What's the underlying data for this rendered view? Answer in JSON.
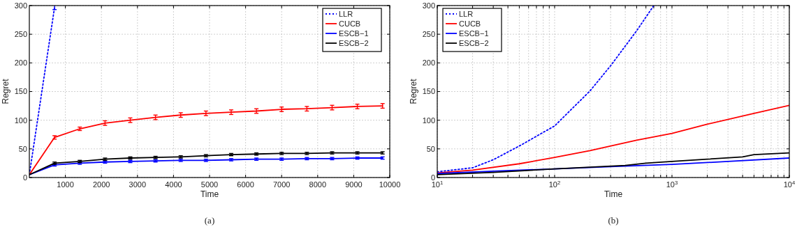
{
  "chart_data": [
    {
      "type": "line",
      "xlabel": "Time",
      "ylabel": "Regret",
      "annotations": [
        "(a)"
      ],
      "xlim": [
        0,
        10000
      ],
      "xticks": [
        1000,
        2000,
        3000,
        4000,
        5000,
        6000,
        7000,
        8000,
        9000,
        10000
      ],
      "ylim": [
        0,
        300
      ],
      "yticks": [
        0,
        50,
        100,
        150,
        200,
        250,
        300
      ],
      "grid": true,
      "legend": "top right",
      "series": [
        {
          "name": "LLR",
          "color": "#0000ff",
          "line_style": "dotted",
          "x": [
            0,
            700
          ],
          "values": [
            5,
            297
          ],
          "errors": [
            null,
            4
          ]
        },
        {
          "name": "CUCB",
          "color": "#ff0000",
          "line_style": "solid",
          "x": [
            0,
            700,
            1400,
            2100,
            2800,
            3500,
            4200,
            4900,
            5600,
            6300,
            7000,
            7700,
            8400,
            9100,
            9800
          ],
          "values": [
            5,
            70,
            85,
            95,
            100,
            105,
            109,
            112,
            114,
            116,
            119,
            120,
            122,
            124,
            125
          ],
          "errors": [
            null,
            3,
            3,
            4,
            4,
            4,
            4,
            4,
            4,
            4,
            4,
            4,
            4,
            4,
            4
          ]
        },
        {
          "name": "ESCB−1",
          "color": "#0000ff",
          "line_style": "solid",
          "x": [
            0,
            700,
            1400,
            2100,
            2800,
            3500,
            4200,
            4900,
            5600,
            6300,
            7000,
            7700,
            8400,
            9100,
            9800
          ],
          "values": [
            5,
            22,
            25,
            27,
            28,
            29,
            30,
            30,
            31,
            32,
            32,
            33,
            33,
            34,
            34
          ],
          "errors": [
            null,
            2,
            2,
            2,
            2,
            2,
            2,
            2,
            2,
            2,
            2,
            2,
            2,
            2,
            2
          ]
        },
        {
          "name": "ESCB−2",
          "color": "#000000",
          "line_style": "solid",
          "x": [
            0,
            700,
            1400,
            2100,
            2800,
            3500,
            4200,
            4900,
            5600,
            6300,
            7000,
            7700,
            8400,
            9100,
            9800
          ],
          "values": [
            5,
            25,
            28,
            32,
            34,
            35,
            36,
            38,
            40,
            41,
            42,
            42,
            43,
            43,
            43
          ],
          "errors": [
            null,
            2,
            2,
            2,
            2,
            2,
            2,
            2,
            2,
            2,
            2,
            2,
            2,
            2,
            2
          ]
        }
      ]
    },
    {
      "type": "line",
      "xlabel": "Time",
      "ylabel": "Regret",
      "annotations": [
        "(b)"
      ],
      "log": "x",
      "xlim": [
        10,
        10000
      ],
      "xticks": [
        {
          "value": 10,
          "label": "10$^{1}$"
        },
        {
          "value": 20,
          "label": null
        },
        {
          "value": 30,
          "label": null
        },
        {
          "value": 40,
          "label": null
        },
        {
          "value": 50,
          "label": null
        },
        {
          "value": 60,
          "label": null
        },
        {
          "value": 70,
          "label": null
        },
        {
          "value": 80,
          "label": null
        },
        {
          "value": 90,
          "label": null
        },
        {
          "value": 100,
          "label": "10$^{2}$"
        },
        {
          "value": 200,
          "label": null
        },
        {
          "value": 300,
          "label": null
        },
        {
          "value": 400,
          "label": null
        },
        {
          "value": 500,
          "label": null
        },
        {
          "value": 600,
          "label": null
        },
        {
          "value": 700,
          "label": null
        },
        {
          "value": 800,
          "label": null
        },
        {
          "value": 900,
          "label": null
        },
        {
          "value": 1000,
          "label": "10$^{3}$"
        },
        {
          "value": 2000,
          "label": null
        },
        {
          "value": 3000,
          "label": null
        },
        {
          "value": 4000,
          "label": null
        },
        {
          "value": 5000,
          "label": null
        },
        {
          "value": 6000,
          "label": null
        },
        {
          "value": 7000,
          "label": null
        },
        {
          "value": 8000,
          "label": null
        },
        {
          "value": 9000,
          "label": null
        },
        {
          "value": 10000,
          "label": "10$^{4}$"
        }
      ],
      "ylim": [
        0,
        300
      ],
      "yticks": [
        0,
        50,
        100,
        150,
        200,
        250,
        300
      ],
      "grid": true,
      "legend": "top left",
      "series": [
        {
          "name": "LLR",
          "color": "#0000ff",
          "line_style": "dotted",
          "x": [
            10,
            20,
            30,
            50,
            100,
            200,
            300,
            500,
            700
          ],
          "values": [
            10,
            17,
            31,
            55,
            90,
            151,
            195,
            256,
            300
          ]
        },
        {
          "name": "CUCB",
          "color": "#ff0000",
          "line_style": "solid",
          "x": [
            10,
            20,
            50,
            100,
            200,
            500,
            1000,
            2000,
            5000,
            10000
          ],
          "values": [
            8,
            13,
            24,
            35,
            47,
            65,
            77,
            93,
            112,
            126
          ]
        },
        {
          "name": "ESCB−1",
          "color": "#0000ff",
          "line_style": "solid",
          "x": [
            10,
            30,
            100,
            300,
            1000,
            3000,
            10000
          ],
          "values": [
            7,
            11,
            15,
            19,
            23,
            28,
            34
          ]
        },
        {
          "name": "ESCB−2",
          "color": "#000000",
          "line_style": "solid",
          "x": [
            10,
            30,
            100,
            200,
            400,
            600,
            1000,
            2000,
            4000,
            5000,
            10000
          ],
          "values": [
            5,
            9,
            15,
            18,
            21,
            25,
            28,
            32,
            36,
            40,
            43
          ]
        }
      ]
    }
  ]
}
